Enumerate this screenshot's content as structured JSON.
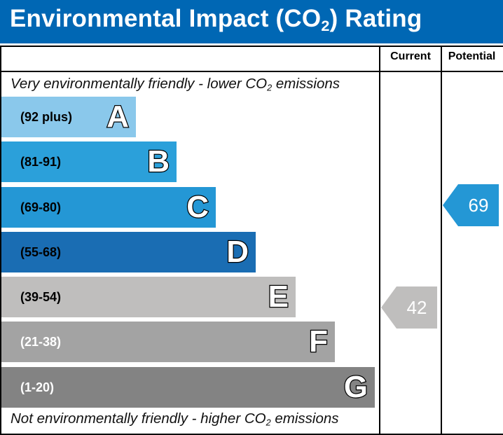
{
  "header": {
    "title_main": "Environmental Impact (CO",
    "title_sub": "2",
    "title_end": ") Rating"
  },
  "columns": {
    "current": "Current",
    "potential": "Potential"
  },
  "captions": {
    "top": {
      "pre": "Very environmentally friendly - lower CO",
      "sub": "2",
      "post": " emissions"
    },
    "bottom": {
      "pre": "Not environmentally friendly - higher CO",
      "sub": "2",
      "post": " emissions"
    }
  },
  "chart_data": {
    "type": "table",
    "bands": [
      {
        "letter": "A",
        "range": "(92 plus)",
        "color": "#8ac8eb",
        "text_color": "#000000"
      },
      {
        "letter": "B",
        "range": "(81-91)",
        "color": "#2ba0da",
        "text_color": "#000000"
      },
      {
        "letter": "C",
        "range": "(69-80)",
        "color": "#2497d5",
        "text_color": "#000000"
      },
      {
        "letter": "D",
        "range": "(55-68)",
        "color": "#1a6db3",
        "text_color": "#000000"
      },
      {
        "letter": "E",
        "range": "(39-54)",
        "color": "#bfbebd",
        "text_color": "#000000"
      },
      {
        "letter": "F",
        "range": "(21-38)",
        "color": "#a3a3a3",
        "text_color": "#ffffff"
      },
      {
        "letter": "G",
        "range": "(1-20)",
        "color": "#838383",
        "text_color": "#ffffff"
      }
    ],
    "current": {
      "value": "42",
      "band": "E",
      "color": "#bfbebd"
    },
    "potential": {
      "value": "69",
      "band": "C",
      "color": "#2497d5"
    }
  }
}
